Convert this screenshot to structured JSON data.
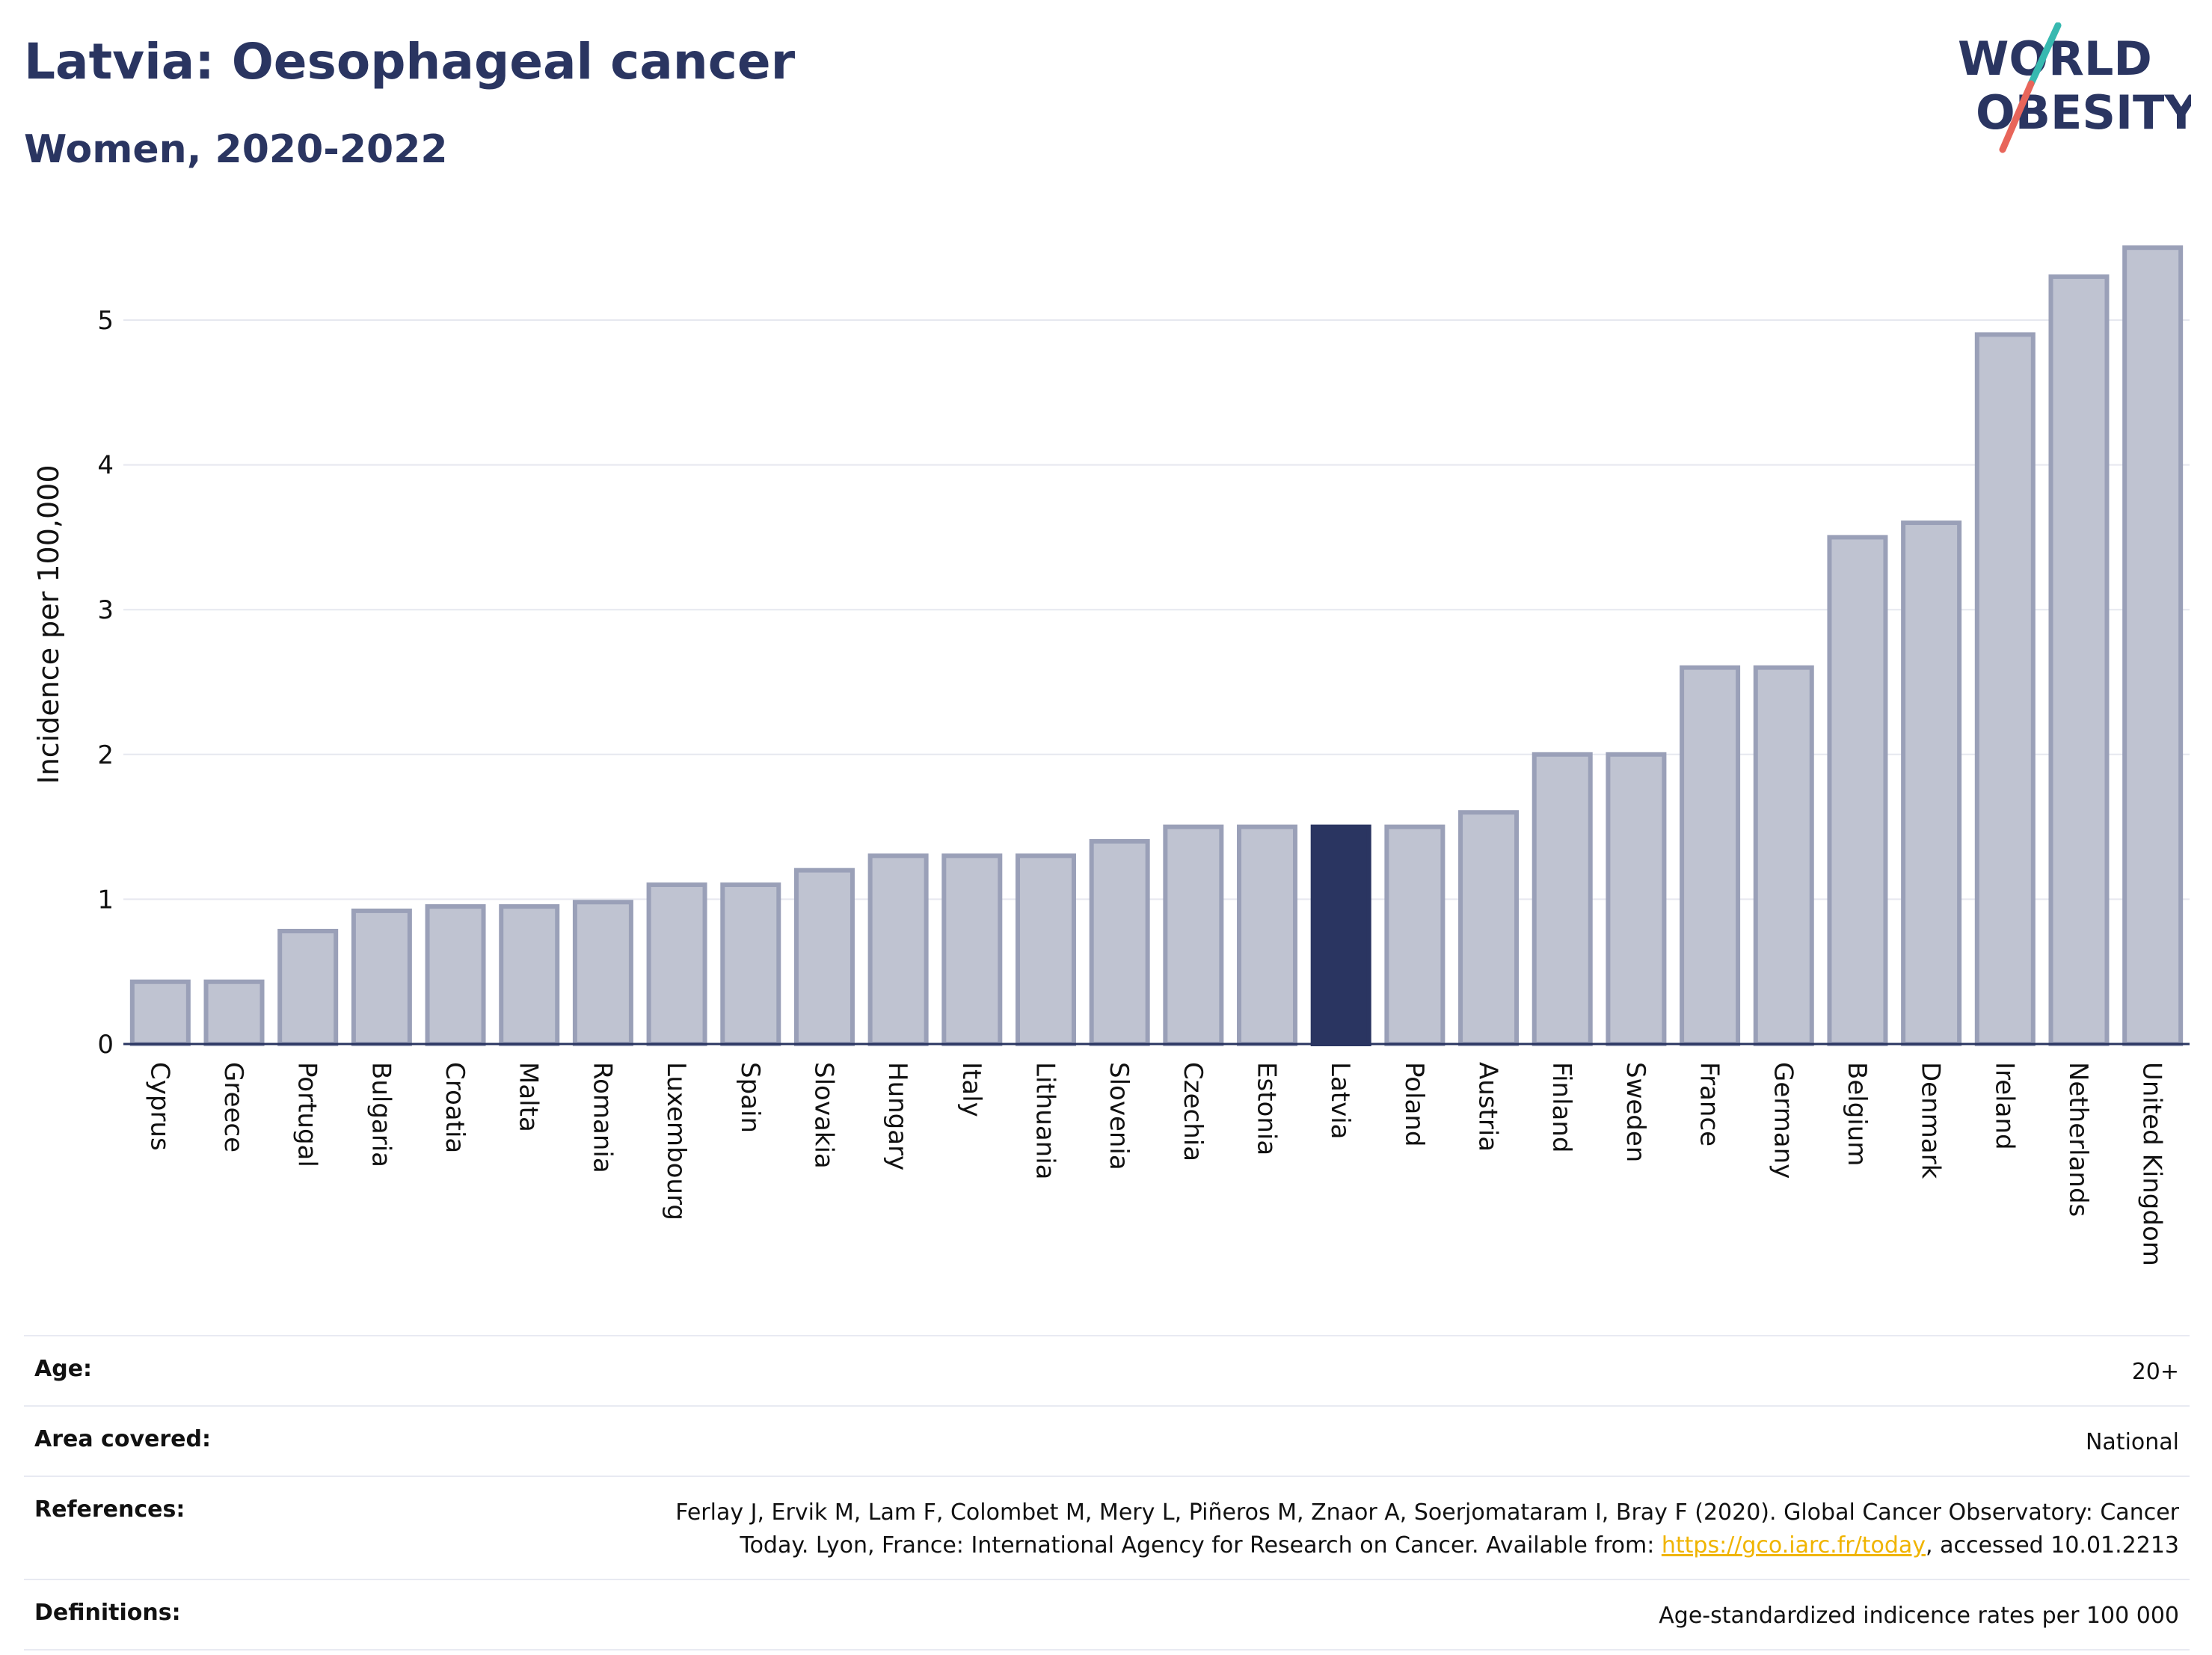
{
  "header": {
    "title": "Latvia: Oesophageal cancer",
    "subtitle": "Women, 2020-2022"
  },
  "logo": {
    "line1": "WORLD",
    "line2": "OBESITY"
  },
  "chart_data": {
    "type": "bar",
    "ylabel": "Incidence per 100,000",
    "ylim": [
      0,
      5.6
    ],
    "yticks": [
      0,
      1,
      2,
      3,
      4,
      5
    ],
    "highlight": "Latvia",
    "colors": {
      "bar": "#bfc3d1",
      "bar_border": "#9aa0b8",
      "highlight": "#2a3561",
      "grid": "#e6e8ef",
      "axis": "#2a3561"
    },
    "categories": [
      "Cyprus",
      "Greece",
      "Portugal",
      "Bulgaria",
      "Croatia",
      "Malta",
      "Romania",
      "Luxembourg",
      "Spain",
      "Slovakia",
      "Hungary",
      "Italy",
      "Lithuania",
      "Slovenia",
      "Czechia",
      "Estonia",
      "Latvia",
      "Poland",
      "Austria",
      "Finland",
      "Sweden",
      "France",
      "Germany",
      "Belgium",
      "Denmark",
      "Ireland",
      "Netherlands",
      "United Kingdom"
    ],
    "values": [
      0.43,
      0.43,
      0.78,
      0.92,
      0.95,
      0.95,
      0.98,
      1.1,
      1.1,
      1.2,
      1.3,
      1.3,
      1.3,
      1.4,
      1.5,
      1.5,
      1.5,
      1.5,
      1.6,
      2.0,
      2.0,
      2.6,
      2.6,
      3.5,
      3.6,
      4.9,
      5.3,
      5.5
    ]
  },
  "meta": {
    "age_label": "Age:",
    "age_value": "20+",
    "area_label": "Area covered:",
    "area_value": "National",
    "references_label": "References:",
    "references_text1": "Ferlay J, Ervik M, Lam F, Colombet M, Mery L, Piñeros M, Znaor A, Soerjomataram I, Bray F (2020). Global Cancer Observatory: Cancer",
    "references_text2_pre": "Today. Lyon, France: International Agency for Research on Cancer. Available from: ",
    "references_link": "https://gco.iarc.fr/today",
    "references_text2_post": ", accessed 10.01.2213",
    "definitions_label": "Definitions:",
    "definitions_value": "Age-standardized indicence rates per 100 000"
  }
}
